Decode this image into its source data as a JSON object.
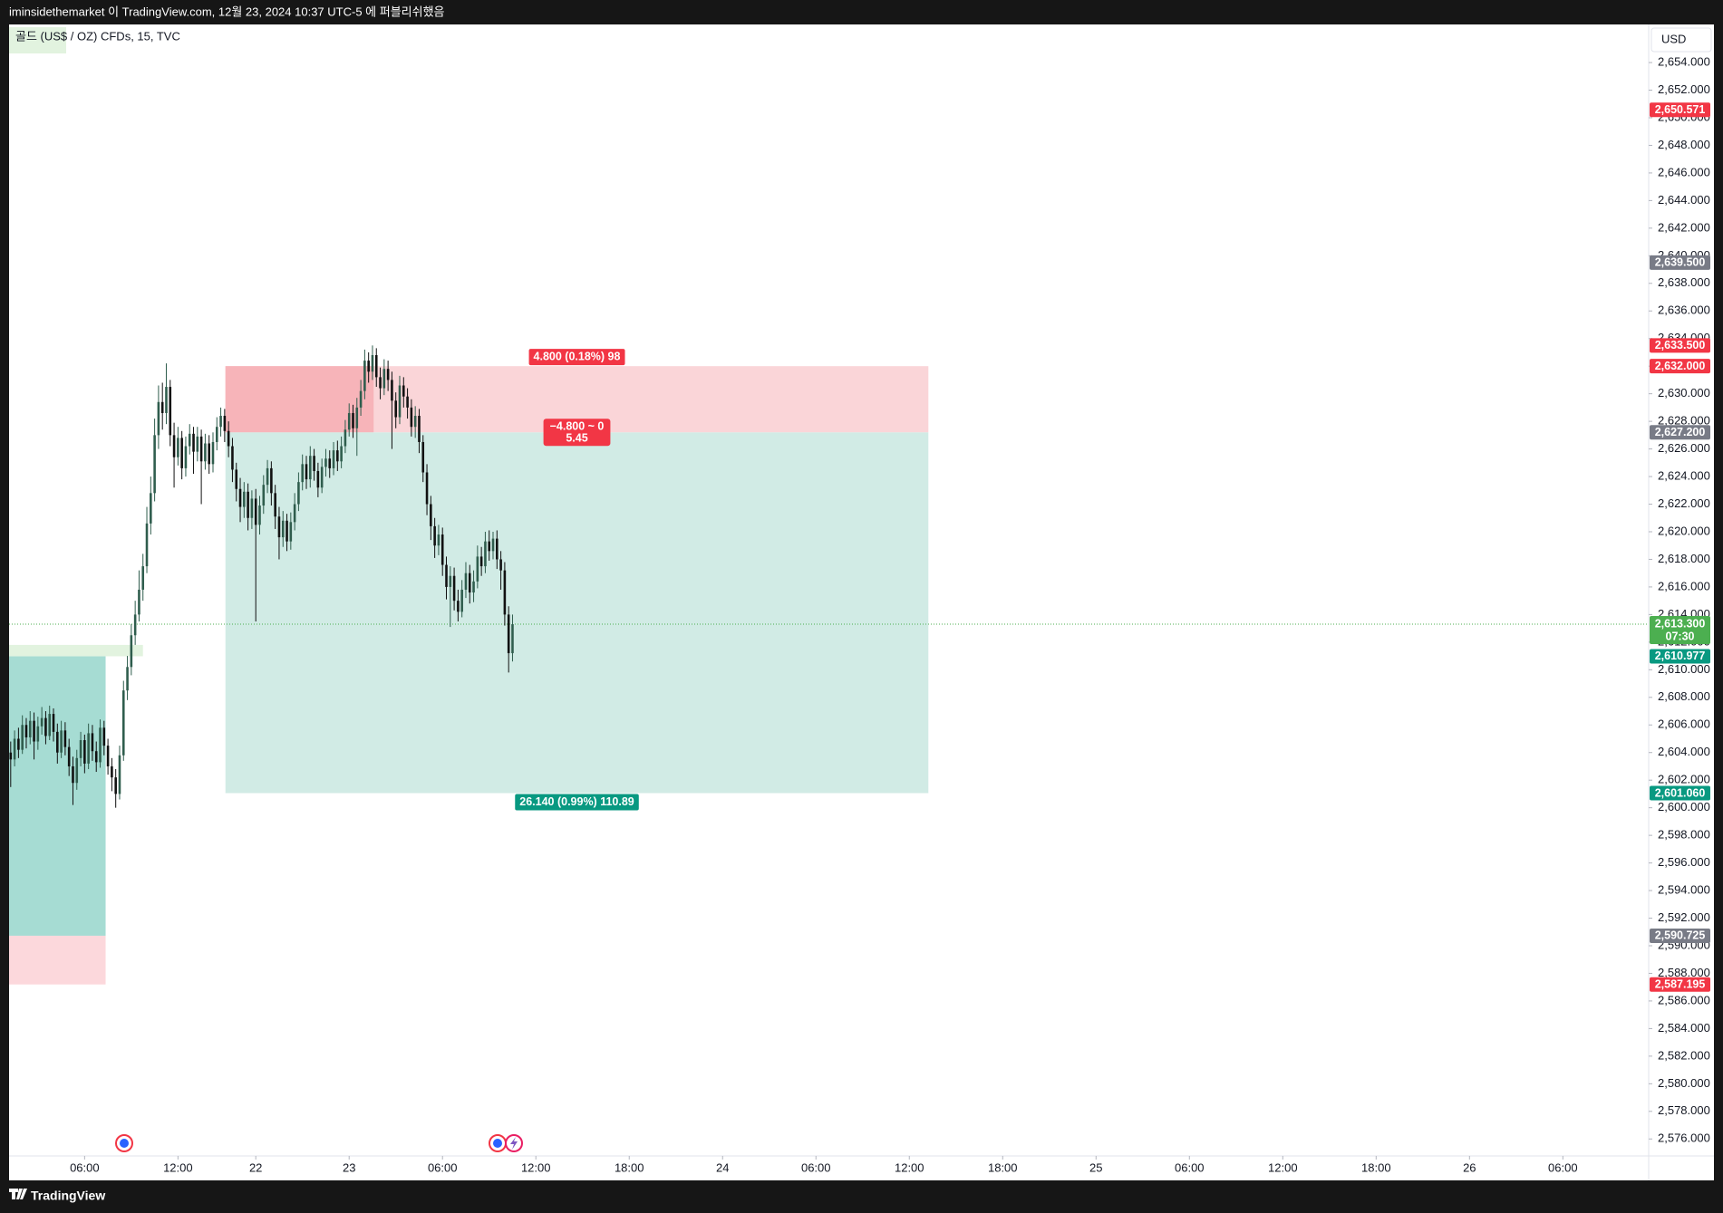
{
  "header": {
    "text": "iminsidethemarket 이 TradingView.com, 12월 23, 2024 10:37 UTC-5 에 퍼블리쉬했음"
  },
  "footer": {
    "brand": "TradingView"
  },
  "chart_data": {
    "type": "candlestick",
    "title": "골드 (US$ / OZ) CFDs, 15, TVC",
    "currency": "USD",
    "up_color": "#2f5d4d",
    "down_color": "#111111",
    "open": [
      2604.0,
      2603.5,
      2605.0,
      2604.2,
      2606.0,
      2605.1,
      2606.3,
      2604.8,
      2605.9,
      2606.5,
      2605.2,
      2606.8,
      2605.5,
      2604.0,
      2605.6,
      2604.4,
      2603.0,
      2601.8,
      2603.6,
      2604.9,
      2603.2,
      2605.4,
      2604.1,
      2603.3,
      2605.8,
      2604.5,
      2603.0,
      2602.2,
      2601.0,
      2603.8,
      2608.5,
      2610.2,
      2612.5,
      2614.0,
      2615.8,
      2617.5,
      2620.6,
      2622.8,
      2627.0,
      2629.4,
      2628.6,
      2630.5,
      2627.0,
      2625.4,
      2626.8,
      2624.6,
      2626.2,
      2627.1,
      2625.8,
      2626.9,
      2625.1,
      2626.4,
      2624.9,
      2626.5,
      2627.6,
      2628.4,
      2627.3,
      2626.2,
      2624.5,
      2623.1,
      2621.8,
      2622.9,
      2621.0,
      2622.4,
      2620.5,
      2621.9,
      2623.4,
      2624.6,
      2622.8,
      2621.1,
      2619.6,
      2620.8,
      2619.3,
      2620.7,
      2622.0,
      2623.6,
      2624.9,
      2623.8,
      2625.5,
      2624.4,
      2623.2,
      2624.7,
      2625.3,
      2624.6,
      2625.9,
      2625.1,
      2626.2,
      2627.4,
      2628.6,
      2627.5,
      2629.0,
      2630.2,
      2632.4,
      2631.6,
      2632.8,
      2631.2,
      2630.4,
      2631.8,
      2631.0,
      2629.5,
      2628.3,
      2630.6,
      2629.8,
      2629.0,
      2627.6,
      2628.4,
      2626.5,
      2624.3,
      2622.0,
      2620.4,
      2619.0,
      2619.8,
      2617.6,
      2616.0,
      2616.8,
      2615.0,
      2614.2,
      2615.8,
      2617.0,
      2615.6,
      2616.4,
      2618.2,
      2617.5,
      2619.3,
      2618.6,
      2619.5,
      2618.0,
      2617.2,
      2614.0,
      2611.2
    ],
    "high": [
      2604.8,
      2605.6,
      2605.8,
      2606.7,
      2606.5,
      2607.0,
      2606.9,
      2606.6,
      2607.3,
      2607.0,
      2607.4,
      2607.2,
      2606.1,
      2606.3,
      2606.2,
      2605.0,
      2603.7,
      2604.2,
      2605.5,
      2605.3,
      2606.1,
      2606.0,
      2604.8,
      2606.4,
      2606.3,
      2605.0,
      2603.6,
      2602.8,
      2604.5,
      2609.2,
      2611.0,
      2613.3,
      2615.0,
      2617.2,
      2618.4,
      2621.8,
      2624.0,
      2628.2,
      2630.6,
      2630.8,
      2632.2,
      2631.0,
      2627.9,
      2627.6,
      2627.3,
      2626.9,
      2627.8,
      2627.6,
      2627.6,
      2627.4,
      2627.1,
      2627.0,
      2627.2,
      2628.3,
      2629.0,
      2628.9,
      2628.0,
      2626.8,
      2625.0,
      2623.9,
      2623.6,
      2623.5,
      2623.0,
      2623.1,
      2622.6,
      2624.1,
      2625.2,
      2625.1,
      2623.4,
      2621.8,
      2621.5,
      2621.3,
      2621.4,
      2622.8,
      2624.3,
      2625.6,
      2625.5,
      2626.2,
      2626.0,
      2625.0,
      2625.3,
      2626.0,
      2625.9,
      2626.5,
      2626.6,
      2626.9,
      2628.1,
      2629.3,
      2629.2,
      2629.7,
      2631.0,
      2633.2,
      2633.0,
      2633.5,
      2633.3,
      2631.9,
      2632.5,
      2632.4,
      2631.6,
      2630.1,
      2631.3,
      2631.2,
      2630.4,
      2629.6,
      2629.1,
      2628.9,
      2627.0,
      2624.9,
      2622.6,
      2621.0,
      2620.5,
      2620.3,
      2618.2,
      2617.5,
      2617.4,
      2615.8,
      2616.5,
      2617.8,
      2617.6,
      2617.2,
      2619.0,
      2618.9,
      2620.0,
      2620.1,
      2620.0,
      2620.1,
      2618.6,
      2617.8,
      2614.6,
      2614.0
    ],
    "low": [
      2601.5,
      2603.0,
      2603.6,
      2603.9,
      2604.3,
      2604.6,
      2603.5,
      2604.2,
      2605.3,
      2604.6,
      2604.9,
      2604.8,
      2603.2,
      2603.6,
      2603.8,
      2602.3,
      2600.2,
      2601.3,
      2603.0,
      2602.5,
      2602.8,
      2603.4,
      2602.6,
      2602.9,
      2603.8,
      2602.4,
      2601.2,
      2600.0,
      2600.6,
      2603.4,
      2607.8,
      2609.6,
      2611.8,
      2613.5,
      2615.0,
      2617.0,
      2619.8,
      2622.2,
      2626.0,
      2627.4,
      2627.8,
      2626.2,
      2623.2,
      2624.8,
      2623.8,
      2624.0,
      2625.6,
      2624.2,
      2625.1,
      2622.0,
      2624.5,
      2624.2,
      2624.3,
      2625.9,
      2626.9,
      2626.5,
      2625.4,
      2623.6,
      2622.2,
      2620.7,
      2621.0,
      2620.1,
      2620.2,
      2613.5,
      2619.8,
      2621.3,
      2622.8,
      2621.9,
      2620.2,
      2618.0,
      2618.9,
      2618.6,
      2618.7,
      2620.1,
      2621.5,
      2623.0,
      2623.1,
      2623.2,
      2623.7,
      2622.5,
      2622.8,
      2624.0,
      2623.9,
      2624.1,
      2624.4,
      2624.6,
      2625.7,
      2626.9,
      2626.8,
      2625.5,
      2628.4,
      2629.6,
      2630.8,
      2631.0,
      2630.5,
      2629.6,
      2629.9,
      2630.2,
      2626.0,
      2627.5,
      2627.8,
      2629.0,
      2628.2,
      2626.9,
      2626.8,
      2625.7,
      2623.6,
      2621.2,
      2619.4,
      2618.1,
      2618.3,
      2616.8,
      2615.1,
      2613.1,
      2614.3,
      2613.5,
      2613.8,
      2615.2,
      2614.8,
      2614.9,
      2615.9,
      2616.8,
      2617.0,
      2617.9,
      2618.0,
      2617.3,
      2615.8,
      2613.2,
      2609.8,
      2610.6
    ],
    "close": [
      2603.5,
      2605.0,
      2604.2,
      2606.0,
      2605.1,
      2606.3,
      2604.8,
      2605.9,
      2606.5,
      2605.2,
      2606.8,
      2605.5,
      2604.0,
      2605.6,
      2604.4,
      2603.0,
      2601.8,
      2603.6,
      2604.9,
      2603.2,
      2605.4,
      2604.1,
      2603.3,
      2605.8,
      2604.5,
      2603.0,
      2602.2,
      2601.0,
      2603.8,
      2608.5,
      2610.2,
      2612.5,
      2614.0,
      2615.8,
      2617.5,
      2620.6,
      2622.8,
      2627.0,
      2629.4,
      2628.6,
      2630.5,
      2627.0,
      2625.4,
      2626.8,
      2624.6,
      2626.2,
      2627.1,
      2625.8,
      2626.9,
      2625.1,
      2626.4,
      2624.9,
      2626.5,
      2627.6,
      2628.4,
      2627.3,
      2626.2,
      2624.5,
      2623.1,
      2621.8,
      2622.9,
      2621.0,
      2622.4,
      2620.5,
      2621.9,
      2623.4,
      2624.6,
      2622.8,
      2621.1,
      2619.6,
      2620.8,
      2619.3,
      2620.7,
      2622.0,
      2623.6,
      2624.9,
      2623.8,
      2625.5,
      2624.4,
      2623.2,
      2624.7,
      2625.3,
      2624.6,
      2625.9,
      2625.1,
      2626.2,
      2627.4,
      2628.6,
      2627.5,
      2629.0,
      2630.2,
      2632.4,
      2631.6,
      2632.8,
      2631.2,
      2630.4,
      2631.8,
      2631.0,
      2629.5,
      2628.3,
      2630.6,
      2629.8,
      2629.0,
      2627.6,
      2628.4,
      2626.5,
      2624.3,
      2622.0,
      2620.4,
      2619.0,
      2619.8,
      2617.6,
      2616.0,
      2616.8,
      2615.0,
      2614.2,
      2615.8,
      2617.0,
      2615.6,
      2616.4,
      2618.2,
      2617.5,
      2619.3,
      2618.6,
      2619.5,
      2618.0,
      2617.2,
      2614.0,
      2611.2,
      2613.3
    ],
    "xlim": [
      -0.42,
      421.06
    ],
    "xticks": [
      {
        "value": 19,
        "label": "06:00"
      },
      {
        "value": 43,
        "label": "12:00"
      },
      {
        "value": 63,
        "label": "22"
      },
      {
        "value": 87,
        "label": "23"
      },
      {
        "value": 111,
        "label": "06:00"
      },
      {
        "value": 135,
        "label": "12:00"
      },
      {
        "value": 159,
        "label": "18:00"
      },
      {
        "value": 183,
        "label": "24"
      },
      {
        "value": 207,
        "label": "06:00"
      },
      {
        "value": 231,
        "label": "12:00"
      },
      {
        "value": 255,
        "label": "18:00"
      },
      {
        "value": 279,
        "label": "25"
      },
      {
        "value": 303,
        "label": "06:00"
      },
      {
        "value": 327,
        "label": "12:00"
      },
      {
        "value": 351,
        "label": "18:00"
      },
      {
        "value": 375,
        "label": "26"
      },
      {
        "value": 399,
        "label": "06:00"
      }
    ],
    "ylim": [
      2574.77,
      2656.76
    ],
    "yticks": [
      {
        "value": 2576,
        "label": "2,576.000"
      },
      {
        "value": 2578,
        "label": "2,578.000"
      },
      {
        "value": 2580,
        "label": "2,580.000"
      },
      {
        "value": 2582,
        "label": "2,582.000"
      },
      {
        "value": 2584,
        "label": "2,584.000"
      },
      {
        "value": 2586,
        "label": "2,586.000"
      },
      {
        "value": 2588,
        "label": "2,588.000"
      },
      {
        "value": 2590,
        "label": "2,590.000"
      },
      {
        "value": 2592,
        "label": "2,592.000"
      },
      {
        "value": 2594,
        "label": "2,594.000"
      },
      {
        "value": 2596,
        "label": "2,596.000"
      },
      {
        "value": 2598,
        "label": "2,598.000"
      },
      {
        "value": 2600,
        "label": "2,600.000"
      },
      {
        "value": 2602,
        "label": "2,602.000"
      },
      {
        "value": 2604,
        "label": "2,604.000"
      },
      {
        "value": 2606,
        "label": "2,606.000"
      },
      {
        "value": 2608,
        "label": "2,608.000"
      },
      {
        "value": 2610,
        "label": "2,610.000"
      },
      {
        "value": 2612,
        "label": "2,612.000"
      },
      {
        "value": 2614,
        "label": "2,614.000"
      },
      {
        "value": 2616,
        "label": "2,616.000"
      },
      {
        "value": 2618,
        "label": "2,618.000"
      },
      {
        "value": 2620,
        "label": "2,620.000"
      },
      {
        "value": 2622,
        "label": "2,622.000"
      },
      {
        "value": 2624,
        "label": "2,624.000"
      },
      {
        "value": 2626,
        "label": "2,626.000"
      },
      {
        "value": 2628,
        "label": "2,628.000"
      },
      {
        "value": 2630,
        "label": "2,630.000"
      },
      {
        "value": 2632,
        "label": "2,632.000"
      },
      {
        "value": 2634,
        "label": "2,634.000"
      },
      {
        "value": 2636,
        "label": "2,636.000"
      },
      {
        "value": 2638,
        "label": "2,638.000"
      },
      {
        "value": 2640,
        "label": "2,640.000"
      },
      {
        "value": 2642,
        "label": "2,642.000"
      },
      {
        "value": 2644,
        "label": "2,644.000"
      },
      {
        "value": 2646,
        "label": "2,646.000"
      },
      {
        "value": 2648,
        "label": "2,648.000"
      },
      {
        "value": 2650,
        "label": "2,650.000"
      },
      {
        "value": 2652,
        "label": "2,652.000"
      },
      {
        "value": 2654,
        "label": "2,654.000"
      }
    ],
    "last_price": {
      "value": 2613.3,
      "label": "2,613.300",
      "countdown": "07:30",
      "color": "#4caf50"
    },
    "price_labels": [
      {
        "value": 2650.571,
        "label": "2,650.571",
        "color": "#f23645"
      },
      {
        "value": 2639.5,
        "label": "2,639.500",
        "color": "#787b86"
      },
      {
        "value": 2633.5,
        "label": "2,633.500",
        "color": "#f23645"
      },
      {
        "value": 2632.0,
        "label": "2,632.000",
        "color": "#f23645"
      },
      {
        "value": 2627.2,
        "label": "2,627.200",
        "color": "#787b86"
      },
      {
        "value": 2610.977,
        "label": "2,610.977",
        "color": "#089981"
      },
      {
        "value": 2601.06,
        "label": "2,601.060",
        "color": "#089981"
      },
      {
        "value": 2590.725,
        "label": "2,590.725",
        "color": "#787b86"
      },
      {
        "value": 2587.195,
        "label": "2,587.195",
        "color": "#f23645"
      }
    ],
    "boxes": [
      {
        "x_start": -0.5,
        "x_end": 24.4,
        "top": 2610.977,
        "bottom": 2590.725,
        "color": "#a6dcd3"
      },
      {
        "x_start": -0.5,
        "x_end": 24.4,
        "top": 2590.725,
        "bottom": 2587.195,
        "color": "#fcd8dc"
      },
      {
        "x_start": -0.5,
        "x_end": 34.0,
        "top": 2611.8,
        "bottom": 2610.977,
        "color": "#e2f3df"
      }
    ],
    "position": {
      "x_start": 55.2,
      "x_end": 235.9,
      "stop": 2632.0,
      "entry": 2627.2,
      "target": 2601.06,
      "stop_color": "#fad5d8",
      "target_color": "#d1ebe5",
      "overlap_end": 93.3,
      "overlap_color": "#f7b4b9",
      "stop_label": "4.800 (0.18%) 98",
      "center_label": [
        "−4.800 ~ 0",
        "5.45"
      ],
      "target_label": "26.140 (0.99%) 110.89",
      "loss_color": "#f23645",
      "profit_color": "#089981"
    }
  }
}
